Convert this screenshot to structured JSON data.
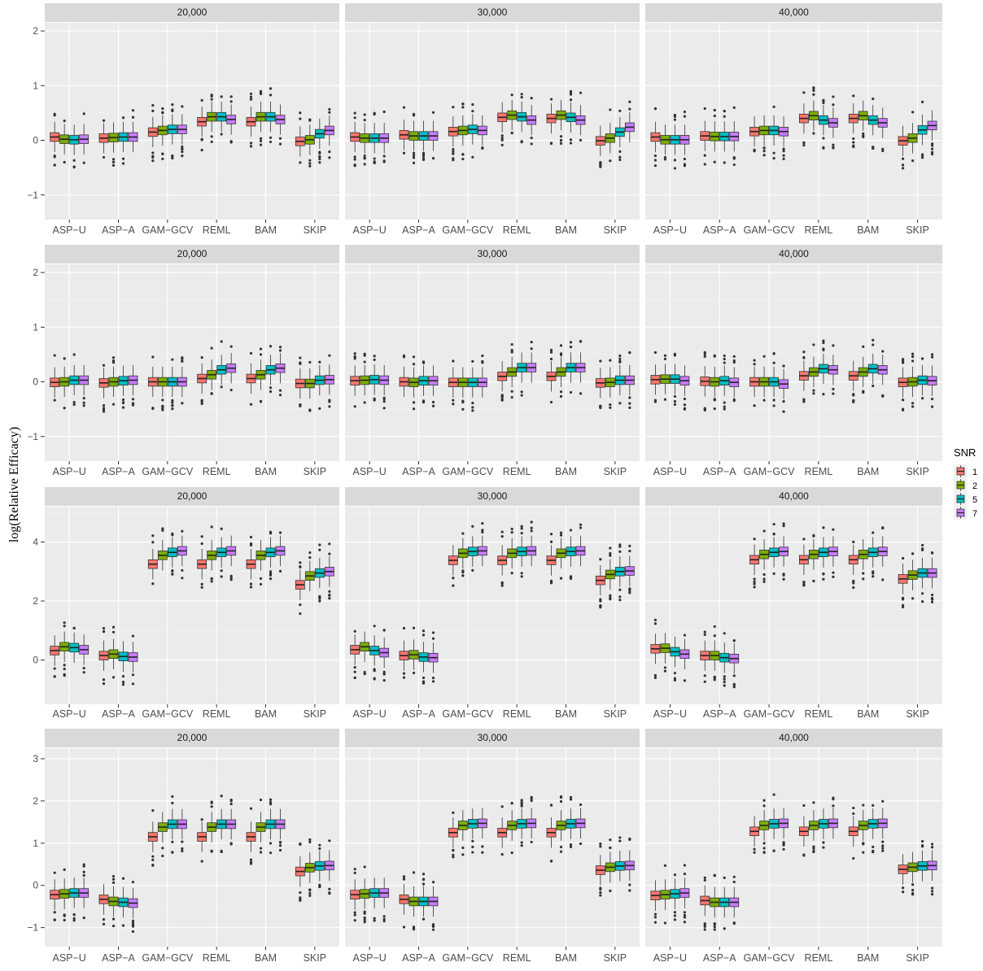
{
  "ylabel": "log(Relative Efficacy)",
  "legend": {
    "title": "SNR",
    "items": [
      {
        "label": "1",
        "color": "#F8766D"
      },
      {
        "label": "2",
        "color": "#7CAE00"
      },
      {
        "label": "5",
        "color": "#00BFC4"
      },
      {
        "label": "7",
        "color": "#C77CFF"
      }
    ]
  },
  "chart_data": [
    {
      "type": "box",
      "facets": [
        "20,000",
        "30,000",
        "40,000"
      ],
      "categories": [
        "ASP−U",
        "ASP−A",
        "GAM−GCV",
        "REML",
        "BAM",
        "SKIP"
      ],
      "ylim": [
        -1.45,
        2.15
      ],
      "yticks": [
        -1,
        0,
        1,
        2
      ],
      "tick_labels": [
        "−1",
        "0",
        "1",
        "2"
      ],
      "medians": [
        [
          [
            0.06,
            0.02,
            0.01,
            0.02
          ],
          [
            0.04,
            0.05,
            0.06,
            0.06
          ],
          [
            0.15,
            0.18,
            0.2,
            0.2
          ],
          [
            0.34,
            0.43,
            0.43,
            0.38
          ],
          [
            0.34,
            0.43,
            0.43,
            0.38
          ],
          [
            -0.02,
            0.01,
            0.12,
            0.18
          ]
        ],
        [
          [
            0.06,
            0.04,
            0.04,
            0.04
          ],
          [
            0.1,
            0.08,
            0.08,
            0.08
          ],
          [
            0.16,
            0.18,
            0.2,
            0.18
          ],
          [
            0.42,
            0.46,
            0.43,
            0.37
          ],
          [
            0.4,
            0.46,
            0.42,
            0.37
          ],
          [
            -0.01,
            0.04,
            0.15,
            0.24
          ]
        ],
        [
          [
            0.06,
            0.01,
            0.01,
            0.01
          ],
          [
            0.08,
            0.07,
            0.07,
            0.07
          ],
          [
            0.16,
            0.18,
            0.18,
            0.16
          ],
          [
            0.4,
            0.45,
            0.37,
            0.32
          ],
          [
            0.4,
            0.45,
            0.37,
            0.32
          ],
          [
            -0.01,
            0.04,
            0.19,
            0.27
          ]
        ]
      ]
    },
    {
      "type": "box",
      "facets": [
        "20,000",
        "30,000",
        "40,000"
      ],
      "categories": [
        "ASP−U",
        "ASP−A",
        "GAM−GCV",
        "REML",
        "BAM",
        "SKIP"
      ],
      "ylim": [
        -1.45,
        2.15
      ],
      "yticks": [
        -1,
        0,
        1,
        2
      ],
      "tick_labels": [
        "−1",
        "0",
        "1",
        "2"
      ],
      "medians": [
        [
          [
            -0.01,
            0.0,
            0.03,
            0.03
          ],
          [
            -0.02,
            0.0,
            0.02,
            0.03
          ],
          [
            0.0,
            0.0,
            0.0,
            0.0
          ],
          [
            0.06,
            0.13,
            0.22,
            0.25
          ],
          [
            0.06,
            0.13,
            0.22,
            0.25
          ],
          [
            -0.03,
            -0.03,
            0.03,
            0.04
          ]
        ],
        [
          [
            0.02,
            0.03,
            0.04,
            0.03
          ],
          [
            0.0,
            -0.01,
            0.02,
            0.02
          ],
          [
            -0.01,
            -0.01,
            -0.01,
            -0.01
          ],
          [
            0.1,
            0.18,
            0.26,
            0.26
          ],
          [
            0.1,
            0.18,
            0.26,
            0.26
          ],
          [
            -0.02,
            -0.01,
            0.03,
            0.03
          ]
        ],
        [
          [
            0.04,
            0.05,
            0.05,
            0.02
          ],
          [
            0.01,
            0.0,
            0.02,
            -0.01
          ],
          [
            0.0,
            0.0,
            0.0,
            -0.04
          ],
          [
            0.11,
            0.18,
            0.24,
            0.22
          ],
          [
            0.11,
            0.18,
            0.24,
            0.22
          ],
          [
            -0.01,
            0.0,
            0.03,
            0.02
          ]
        ]
      ]
    },
    {
      "type": "box",
      "facets": [
        "20,000",
        "30,000",
        "40,000"
      ],
      "categories": [
        "ASP−U",
        "ASP−A",
        "GAM−GCV",
        "REML",
        "BAM",
        "SKIP"
      ],
      "ylim": [
        -1.5,
        5.2
      ],
      "yticks": [
        0,
        2,
        4
      ],
      "tick_labels": [
        "0",
        "2",
        "4"
      ],
      "medians": [
        [
          [
            0.32,
            0.45,
            0.42,
            0.35
          ],
          [
            0.15,
            0.2,
            0.12,
            0.1
          ],
          [
            3.25,
            3.55,
            3.65,
            3.7
          ],
          [
            3.25,
            3.55,
            3.65,
            3.7
          ],
          [
            3.25,
            3.55,
            3.65,
            3.7
          ],
          [
            2.55,
            2.85,
            2.95,
            3.0
          ]
        ],
        [
          [
            0.35,
            0.45,
            0.32,
            0.25
          ],
          [
            0.15,
            0.18,
            0.1,
            0.08
          ],
          [
            3.38,
            3.62,
            3.68,
            3.7
          ],
          [
            3.38,
            3.62,
            3.68,
            3.7
          ],
          [
            3.38,
            3.62,
            3.68,
            3.7
          ],
          [
            2.7,
            2.9,
            3.0,
            3.02
          ]
        ],
        [
          [
            0.38,
            0.4,
            0.28,
            0.2
          ],
          [
            0.15,
            0.15,
            0.08,
            0.05
          ],
          [
            3.4,
            3.58,
            3.65,
            3.68
          ],
          [
            3.4,
            3.58,
            3.65,
            3.68
          ],
          [
            3.4,
            3.58,
            3.65,
            3.68
          ],
          [
            2.75,
            2.88,
            2.95,
            2.95
          ]
        ]
      ]
    },
    {
      "type": "box",
      "facets": [
        "20,000",
        "30,000",
        "40,000"
      ],
      "categories": [
        "ASP−U",
        "ASP−A",
        "GAM−GCV",
        "REML",
        "BAM",
        "SKIP"
      ],
      "ylim": [
        -1.45,
        3.25
      ],
      "yticks": [
        -1,
        0,
        1,
        2,
        3
      ],
      "tick_labels": [
        "−1",
        "0",
        "1",
        "2",
        "3"
      ],
      "medians": [
        [
          [
            -0.22,
            -0.2,
            -0.18,
            -0.18
          ],
          [
            -0.33,
            -0.38,
            -0.4,
            -0.42
          ],
          [
            1.15,
            1.38,
            1.45,
            1.45
          ],
          [
            1.15,
            1.38,
            1.45,
            1.45
          ],
          [
            1.15,
            1.38,
            1.45,
            1.45
          ],
          [
            0.33,
            0.42,
            0.46,
            0.47
          ]
        ],
        [
          [
            -0.22,
            -0.2,
            -0.18,
            -0.18
          ],
          [
            -0.33,
            -0.38,
            -0.38,
            -0.38
          ],
          [
            1.25,
            1.42,
            1.46,
            1.47
          ],
          [
            1.25,
            1.42,
            1.46,
            1.47
          ],
          [
            1.25,
            1.42,
            1.46,
            1.47
          ],
          [
            0.36,
            0.43,
            0.46,
            0.47
          ]
        ],
        [
          [
            -0.24,
            -0.22,
            -0.2,
            -0.18
          ],
          [
            -0.36,
            -0.4,
            -0.4,
            -0.4
          ],
          [
            1.28,
            1.42,
            1.46,
            1.47
          ],
          [
            1.28,
            1.42,
            1.46,
            1.47
          ],
          [
            1.28,
            1.42,
            1.46,
            1.47
          ],
          [
            0.38,
            0.43,
            0.46,
            0.47
          ]
        ]
      ]
    }
  ]
}
